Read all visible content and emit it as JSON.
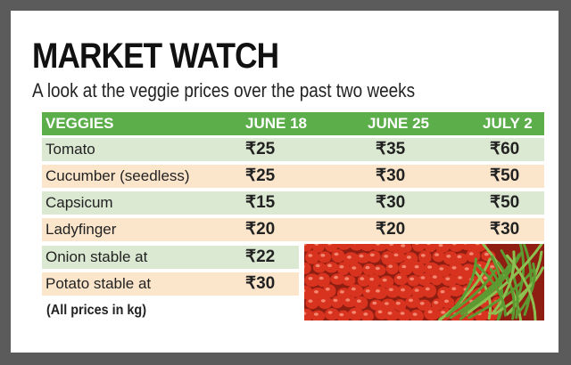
{
  "title": "MARKET WATCH",
  "subtitle": "A look at the veggie prices over the past two weeks",
  "note": "(All prices in kg)",
  "chart_data": {
    "type": "table",
    "columns": [
      "VEGGIES",
      "JUNE 18",
      "JUNE 25",
      "JULY 2"
    ],
    "rows": [
      {
        "name": "Tomato",
        "values": [
          "₹25",
          "₹35",
          "₹60"
        ]
      },
      {
        "name": "Cucumber (seedless)",
        "values": [
          "₹25",
          "₹30",
          "₹50"
        ]
      },
      {
        "name": "Capsicum",
        "values": [
          "₹15",
          "₹30",
          "₹50"
        ]
      },
      {
        "name": "Ladyfinger",
        "values": [
          "₹20",
          "₹20",
          "₹30"
        ]
      },
      {
        "name": "Onion stable at",
        "values": [
          "₹22"
        ]
      },
      {
        "name": "Potato stable at",
        "values": [
          "₹30"
        ]
      }
    ]
  },
  "colors": {
    "header": "#5cae4b",
    "row_green": "#dbe8d2",
    "row_peach": "#fbe6cc",
    "tomato": "#d8331f",
    "bean": "#5d9a32"
  },
  "image": "tomatoes-and-green-beans-photo"
}
